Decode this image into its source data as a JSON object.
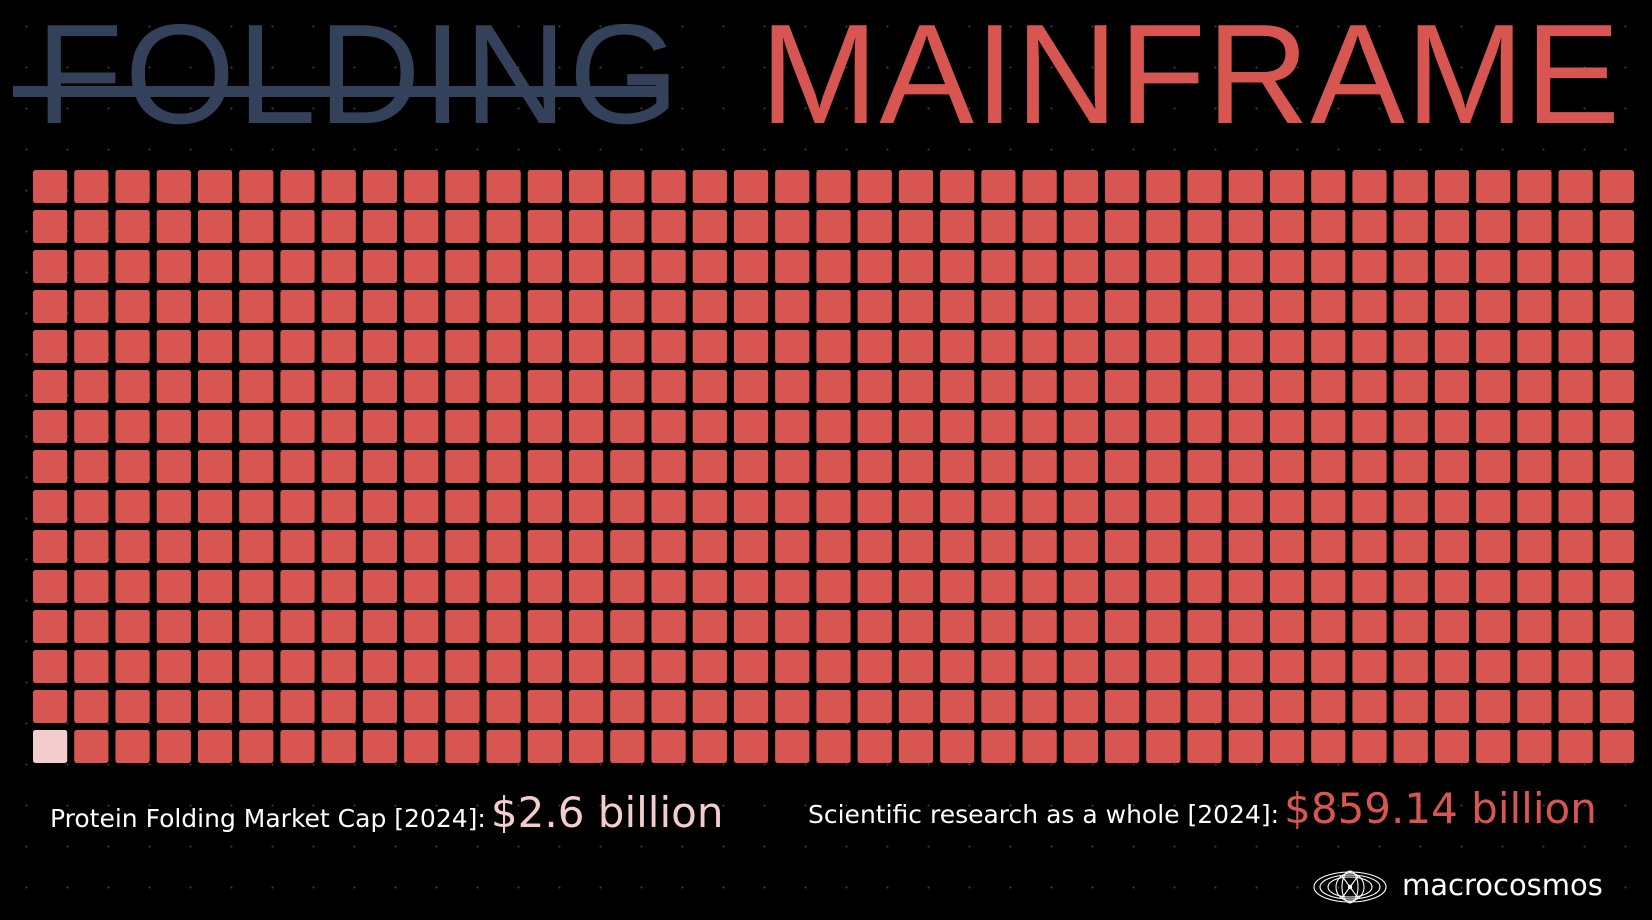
{
  "title": {
    "struck_word": "FOLDING",
    "main_word": "MAINFRAME"
  },
  "captions": {
    "left_label": "Protein Folding Market Cap [2024]:",
    "left_value": "$2.6 billion",
    "right_label": "Scientific research as a whole [2024]:",
    "right_value": "$859.14 billion"
  },
  "brand": {
    "name": "macrocosmos",
    "icon": "macrocosmos-logo-icon"
  },
  "colors": {
    "background": "#000000",
    "accent": "#d85651",
    "highlight": "#f3cdcd",
    "struck": "#34415a"
  },
  "chart_data": {
    "type": "waffle",
    "rows": 15,
    "columns": 39,
    "total_cells": 585,
    "highlighted_cells": 1,
    "highlight_position": "bottom-left",
    "series": [
      {
        "name": "Protein Folding Market Cap [2024]",
        "value": 2.6,
        "unit": "billion USD"
      },
      {
        "name": "Scientific research as a whole [2024]",
        "value": 859.14,
        "unit": "billion USD"
      }
    ]
  }
}
